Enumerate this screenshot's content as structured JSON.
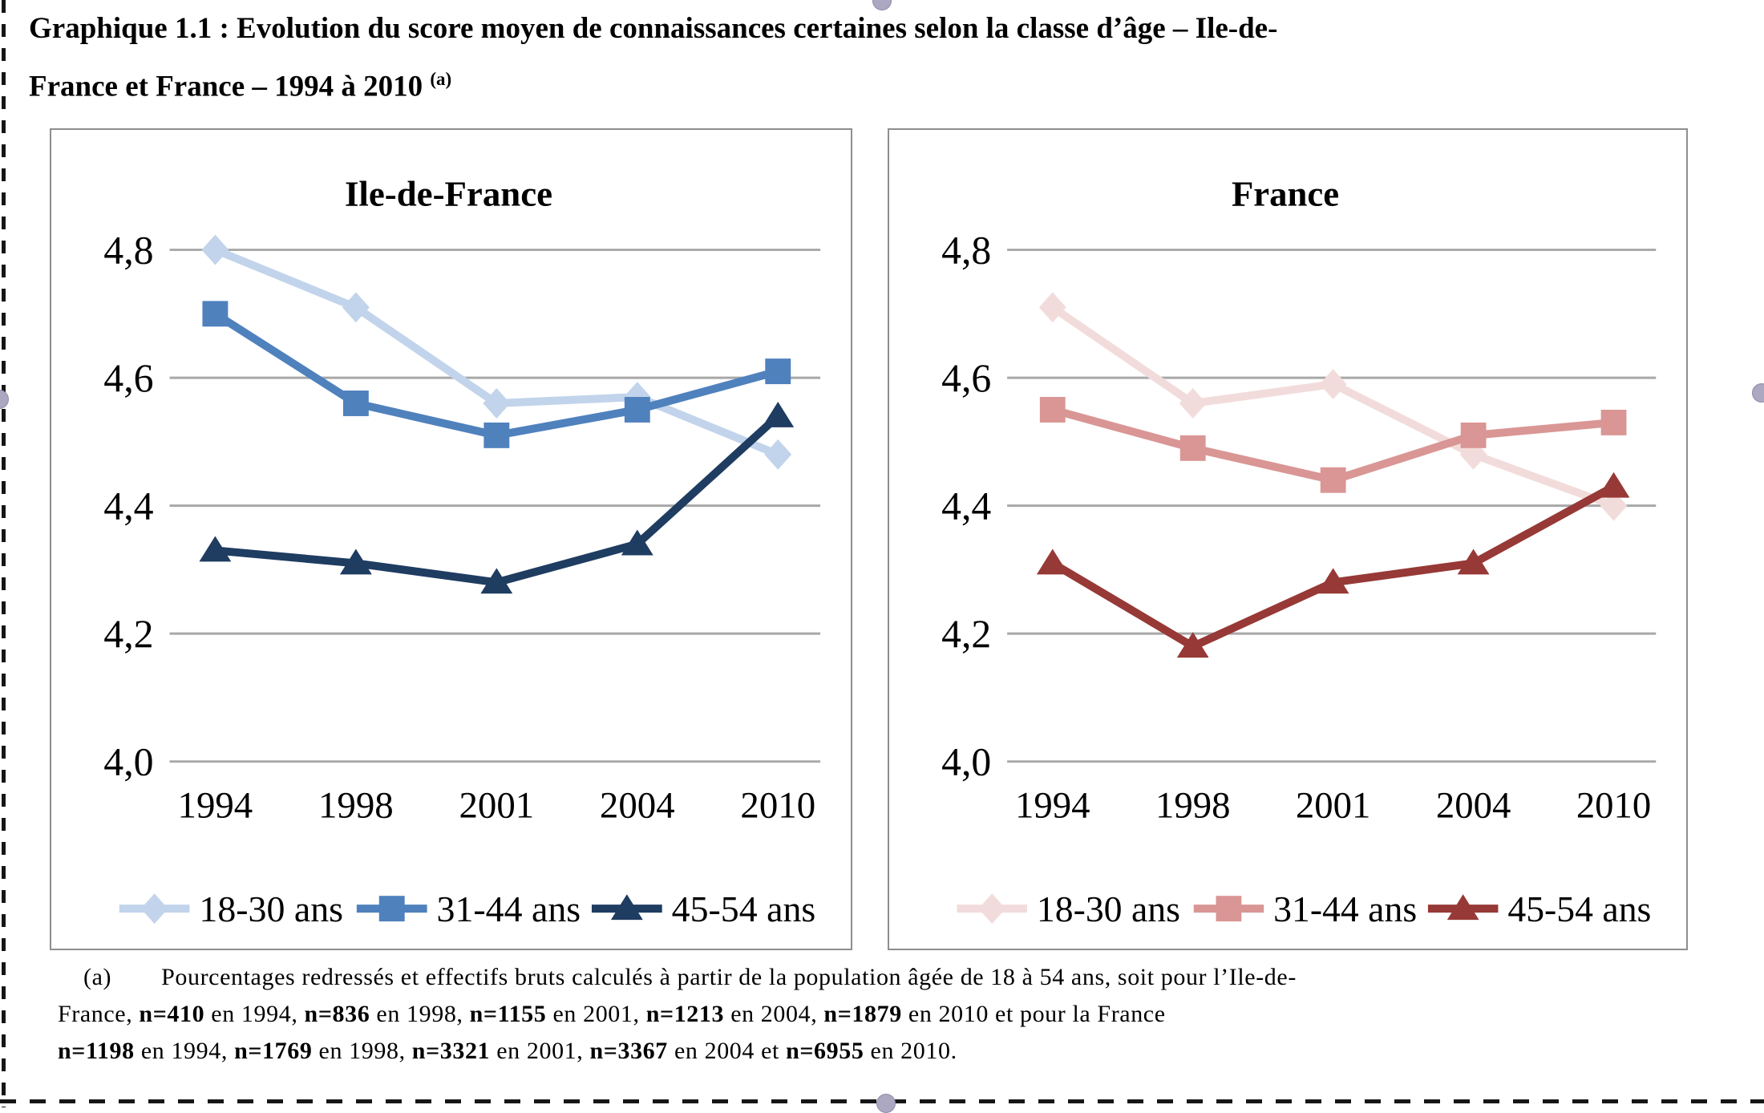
{
  "document": {
    "title": {
      "line1": "Graphique 1.1 : Evolution du score moyen de connaissances certaines selon la classe d’âge – Ile-de-",
      "line2": "France et France – 1994 à 2010 ",
      "sup": "(a)"
    },
    "footnote_lines": [
      [
        {
          "t": "(a)",
          "b": false,
          "ref": true
        },
        {
          "t": "Pourcentages redressés et effectifs bruts calculés à partir de la population âgée de 18 à 54 ans, soit pour l’Ile-de-",
          "b": false
        }
      ],
      [
        {
          "t": "France, ",
          "b": false
        },
        {
          "t": "n=410",
          "b": true
        },
        {
          "t": " en 1994, ",
          "b": false
        },
        {
          "t": "n=836",
          "b": true
        },
        {
          "t": " en 1998, ",
          "b": false
        },
        {
          "t": "n=1155",
          "b": true
        },
        {
          "t": " en 2001, ",
          "b": false
        },
        {
          "t": "n=1213",
          "b": true
        },
        {
          "t": " en 2004, ",
          "b": false
        },
        {
          "t": "n=1879",
          "b": true
        },
        {
          "t": " en 2010 et pour la France",
          "b": false
        }
      ],
      [
        {
          "t": "n=1198",
          "b": true
        },
        {
          "t": " en 1994, ",
          "b": false
        },
        {
          "t": "n=1769",
          "b": true
        },
        {
          "t": " en 1998, ",
          "b": false
        },
        {
          "t": "n=3321",
          "b": true
        },
        {
          "t": " en 2001, ",
          "b": false
        },
        {
          "t": "n=3367",
          "b": true
        },
        {
          "t": " en 2004 et ",
          "b": false
        },
        {
          "t": "n=6955",
          "b": true
        },
        {
          "t": " en 2010.",
          "b": false
        }
      ]
    ]
  },
  "chart_data": [
    {
      "type": "line",
      "title": "Ile-de-France",
      "categories": [
        "1994",
        "1998",
        "2001",
        "2004",
        "2010"
      ],
      "x": [
        1994,
        1998,
        2001,
        2004,
        2010
      ],
      "y_ticks": [
        "4,8",
        "4,6",
        "4,4",
        "4,2",
        "4,0"
      ],
      "y_tick_values": [
        4.8,
        4.6,
        4.4,
        4.2,
        4.0
      ],
      "ylim": [
        4.0,
        4.9
      ],
      "grid": true,
      "legend_position": "bottom",
      "series": [
        {
          "name": "18-30 ans",
          "marker": "diamond",
          "color": "#C2D4EB",
          "values": [
            4.8,
            4.71,
            4.56,
            4.57,
            4.48
          ]
        },
        {
          "name": "31-44 ans",
          "marker": "square",
          "color": "#4F81BD",
          "values": [
            4.7,
            4.56,
            4.51,
            4.55,
            4.61
          ]
        },
        {
          "name": "45-54 ans",
          "marker": "triangle",
          "color": "#1F3C61",
          "values": [
            4.33,
            4.31,
            4.28,
            4.34,
            4.54
          ]
        }
      ],
      "gridline_color": "#A8A8A8"
    },
    {
      "type": "line",
      "title": "France",
      "categories": [
        "1994",
        "1998",
        "2001",
        "2004",
        "2010"
      ],
      "x": [
        1994,
        1998,
        2001,
        2004,
        2010
      ],
      "y_ticks": [
        "4,8",
        "4,6",
        "4,4",
        "4,2",
        "4,0"
      ],
      "y_tick_values": [
        4.8,
        4.6,
        4.4,
        4.2,
        4.0
      ],
      "ylim": [
        4.0,
        4.9
      ],
      "grid": true,
      "legend_position": "bottom",
      "series": [
        {
          "name": "18-30 ans",
          "marker": "diamond",
          "color": "#F2DCDB",
          "values": [
            4.71,
            4.56,
            4.59,
            4.48,
            4.4
          ]
        },
        {
          "name": "31-44 ans",
          "marker": "square",
          "color": "#D99694",
          "values": [
            4.55,
            4.49,
            4.44,
            4.51,
            4.53
          ]
        },
        {
          "name": "45-54 ans",
          "marker": "triangle",
          "color": "#973936",
          "values": [
            4.31,
            4.18,
            4.28,
            4.31,
            4.43
          ]
        }
      ],
      "gridline_color": "#A8A8A8"
    }
  ]
}
